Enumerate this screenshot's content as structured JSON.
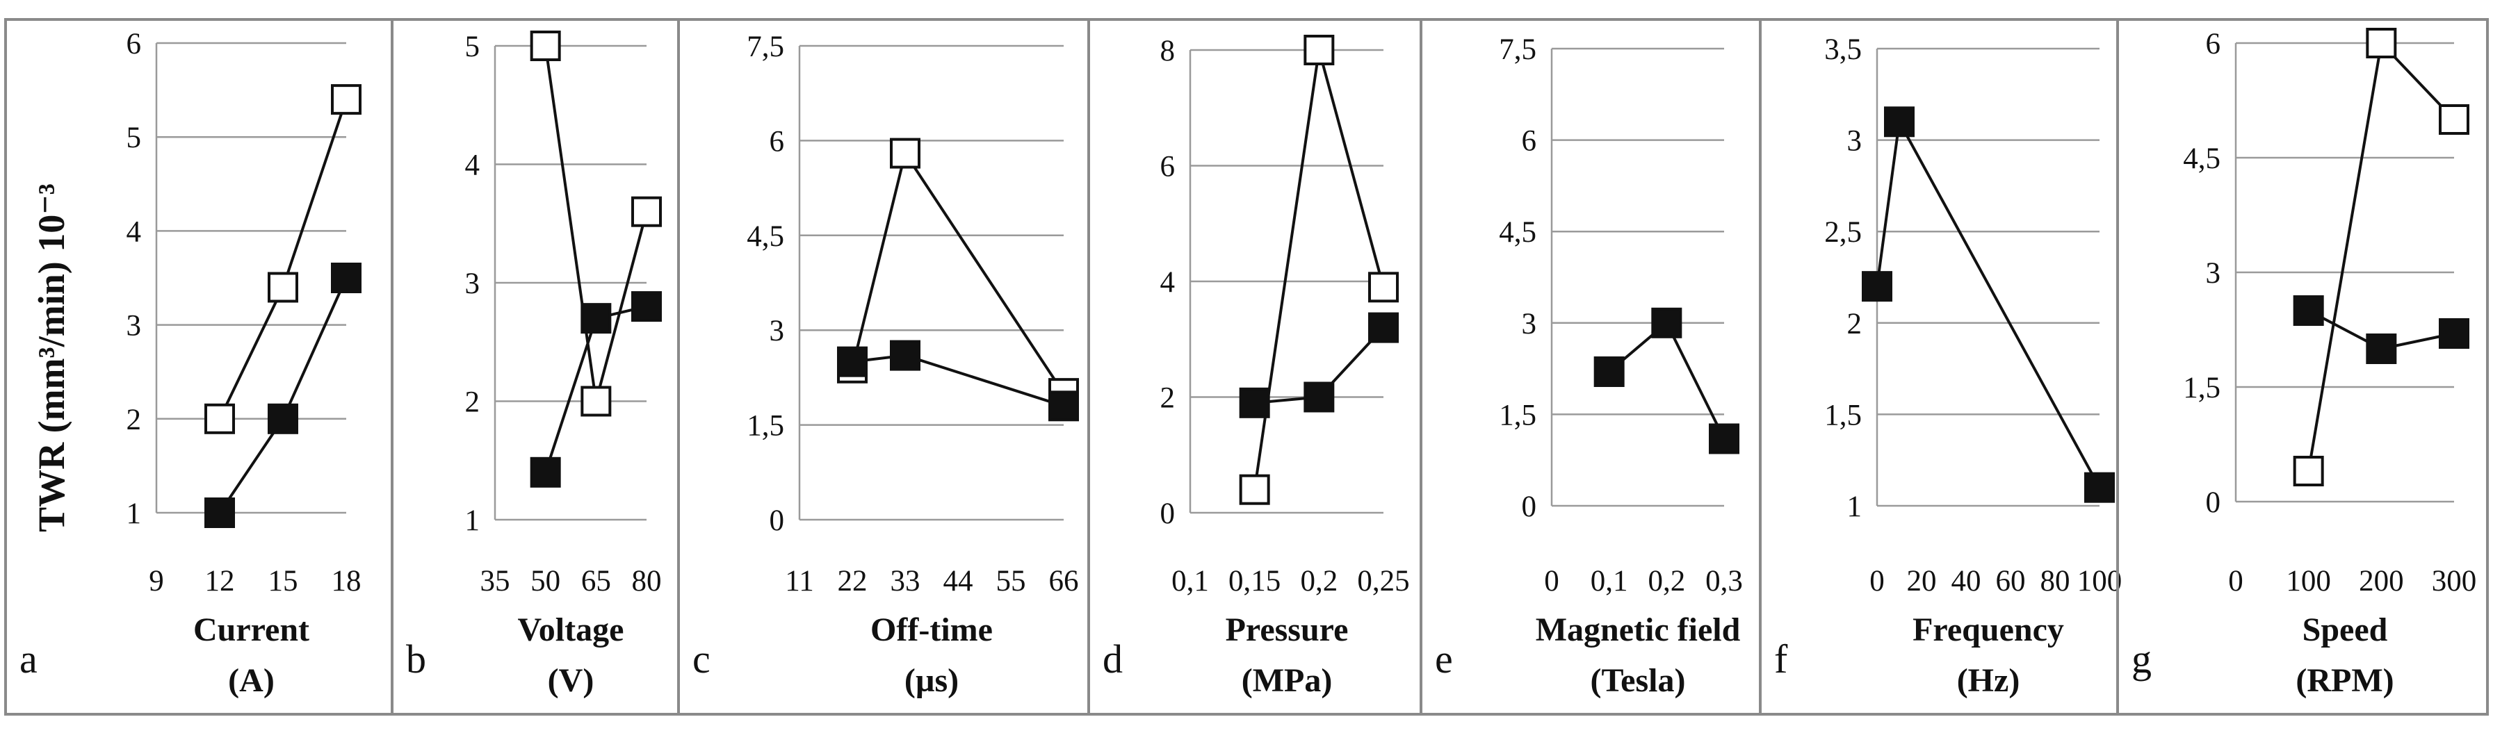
{
  "ylabel": "TWR (mm³/min)  10⁻³",
  "chart_data": [
    {
      "type": "line",
      "panel": "a",
      "xlabel": "Current",
      "xunit": "(A)",
      "xticks": [
        9,
        12,
        15,
        18
      ],
      "xlim": [
        9,
        18
      ],
      "yticks": [
        "1",
        "2",
        "3",
        "4",
        "5",
        "6"
      ],
      "ylim": [
        1,
        6
      ],
      "series": [
        {
          "marker": "open-square",
          "x": [
            12,
            15,
            18
          ],
          "y": [
            2.0,
            3.4,
            5.4
          ]
        },
        {
          "marker": "filled-square",
          "x": [
            12,
            15,
            18
          ],
          "y": [
            1.0,
            2.0,
            3.5
          ]
        }
      ]
    },
    {
      "type": "line",
      "panel": "b",
      "xlabel": "Voltage",
      "xunit": "(V)",
      "xticks": [
        35,
        50,
        65,
        80
      ],
      "xlim": [
        35,
        80
      ],
      "yticks": [
        "1",
        "2",
        "3",
        "4",
        "5"
      ],
      "ylim": [
        1,
        5
      ],
      "series": [
        {
          "marker": "open-square",
          "x": [
            50,
            65,
            80
          ],
          "y": [
            5.0,
            2.0,
            3.6
          ]
        },
        {
          "marker": "filled-square",
          "x": [
            50,
            65,
            80
          ],
          "y": [
            1.4,
            2.7,
            2.8
          ]
        }
      ]
    },
    {
      "type": "line",
      "panel": "c",
      "xlabel": "Off-time",
      "xunit": "(µs)",
      "xticks": [
        11,
        22,
        33,
        44,
        55,
        66
      ],
      "xlim": [
        11,
        66
      ],
      "yticks": [
        "0",
        "1,5",
        "3",
        "4,5",
        "6",
        "7,5"
      ],
      "ylim": [
        0,
        7.5
      ],
      "series": [
        {
          "marker": "open-square",
          "x": [
            22,
            33,
            66
          ],
          "y": [
            2.4,
            5.8,
            2.0
          ]
        },
        {
          "marker": "filled-square",
          "x": [
            22,
            33,
            66
          ],
          "y": [
            2.5,
            2.6,
            1.8
          ]
        }
      ]
    },
    {
      "type": "line",
      "panel": "d",
      "xlabel": "Pressure",
      "xunit": "(MPa)",
      "xticks": [
        "0,1",
        "0,15",
        "0,2",
        "0,25"
      ],
      "xlim": [
        0.1,
        0.25
      ],
      "yticks": [
        "0",
        "2",
        "4",
        "6",
        "8"
      ],
      "ylim": [
        0,
        8
      ],
      "series": [
        {
          "marker": "open-square",
          "x": [
            0.15,
            0.2,
            0.25
          ],
          "y": [
            0.4,
            8.0,
            3.9
          ]
        },
        {
          "marker": "filled-square",
          "x": [
            0.15,
            0.2,
            0.25
          ],
          "y": [
            1.9,
            2.0,
            3.2
          ]
        }
      ]
    },
    {
      "type": "line",
      "panel": "e",
      "xlabel": "Magnetic field",
      "xunit": "(Tesla)",
      "xticks": [
        "0",
        "0,1",
        "0,2",
        "0,3"
      ],
      "xlim": [
        0,
        0.3
      ],
      "yticks": [
        "0",
        "1,5",
        "3",
        "4,5",
        "6",
        "7,5"
      ],
      "ylim": [
        0,
        7.5
      ],
      "series": [
        {
          "marker": "filled-square",
          "x": [
            0.1,
            0.2,
            0.3
          ],
          "y": [
            2.2,
            3.0,
            1.1
          ]
        }
      ]
    },
    {
      "type": "line",
      "panel": "f",
      "xlabel": "Frequency",
      "xunit": "(Hz)",
      "xticks": [
        0,
        20,
        40,
        60,
        80,
        100
      ],
      "xlim": [
        0,
        100
      ],
      "yticks": [
        "1",
        "1,5",
        "2",
        "2,5",
        "3",
        "3,5"
      ],
      "ylim": [
        1,
        3.5
      ],
      "series": [
        {
          "marker": "filled-square",
          "x": [
            0,
            10,
            100
          ],
          "y": [
            2.2,
            3.1,
            1.1
          ]
        }
      ]
    },
    {
      "type": "line",
      "panel": "g",
      "xlabel": "Speed",
      "xunit": "(RPM)",
      "xticks": [
        0,
        100,
        200,
        300
      ],
      "xlim": [
        0,
        300
      ],
      "yticks": [
        "0",
        "1,5",
        "3",
        "4,5",
        "6"
      ],
      "ylim": [
        0,
        6
      ],
      "series": [
        {
          "marker": "open-square",
          "x": [
            100,
            200,
            300
          ],
          "y": [
            0.4,
            6.0,
            5.0
          ]
        },
        {
          "marker": "filled-square",
          "x": [
            100,
            200,
            300
          ],
          "y": [
            2.5,
            2.0,
            2.2
          ]
        }
      ]
    }
  ]
}
